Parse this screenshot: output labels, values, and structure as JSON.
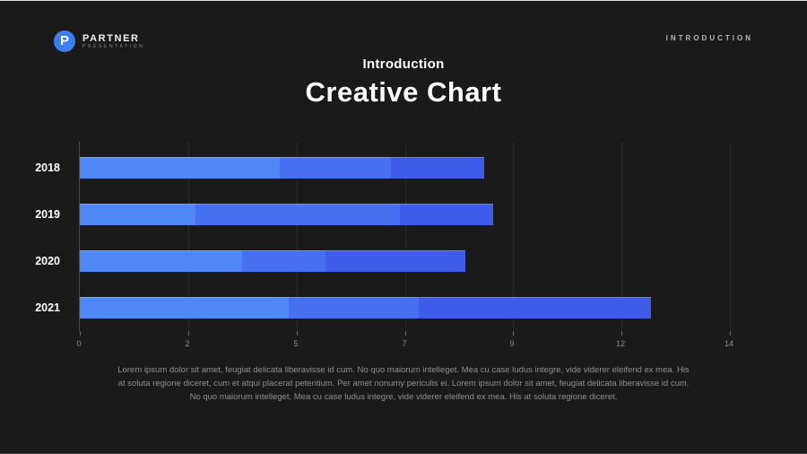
{
  "header": {
    "logo": {
      "icon_letter": "P",
      "brand": "PARTNER",
      "tagline": "PRESENTATION",
      "icon_color": "#3f7ef0"
    },
    "page_label": "INTRODUCTION"
  },
  "title": {
    "eyebrow": "Introduction",
    "heading": "Creative Chart"
  },
  "chart_data": {
    "type": "bar",
    "orientation": "horizontal",
    "stacked": true,
    "title": "Creative Chart",
    "categories": [
      "2018",
      "2019",
      "2020",
      "2021"
    ],
    "series": [
      {
        "name": "segment-1",
        "color": "#4f88f4",
        "values": [
          4.3,
          2.5,
          3.5,
          4.5
        ]
      },
      {
        "name": "segment-2",
        "color": "#4670f0",
        "values": [
          2.4,
          4.4,
          1.8,
          2.8
        ]
      },
      {
        "name": "segment-3",
        "color": "#3e5ce9",
        "values": [
          2.0,
          2.0,
          3.0,
          5.0
        ]
      }
    ],
    "totals": [
      8.7,
      8.9,
      8.3,
      12.3
    ],
    "x_axis": {
      "min": 0,
      "max": 14,
      "tick_labels": [
        "0",
        "2",
        "5",
        "7",
        "9",
        "12",
        "14"
      ]
    },
    "ylabel": "",
    "xlabel": "",
    "grid": true,
    "legend": false
  },
  "footer": {
    "paragraph": "Lorem ipsum dolor sit amet, feugiat delicata liberavisse id cum. No quo maiorum intelleget. Mea cu case ludus integre, vide viderer eleifend ex mea. His at soluta regione diceret, cum et atqui placerat petentium. Per amet nonumy periculis ei. Lorem ipsum dolor sit amet, feugiat delicata liberavisse id cum. No quo maiorum intelleget. Mea cu case ludus integre, vide viderer eleifend ex mea. His at soluta regione diceret."
  }
}
